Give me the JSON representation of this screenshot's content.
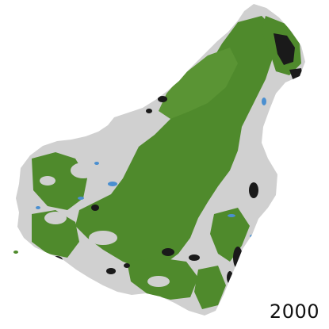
{
  "map": {
    "year": "2000",
    "legend_colors": {
      "forest": "#4f8a2c",
      "cleared_land": "#d0d0d0",
      "water": "#4a8fd0",
      "burned_or_degraded": "#1a1a1a"
    }
  }
}
